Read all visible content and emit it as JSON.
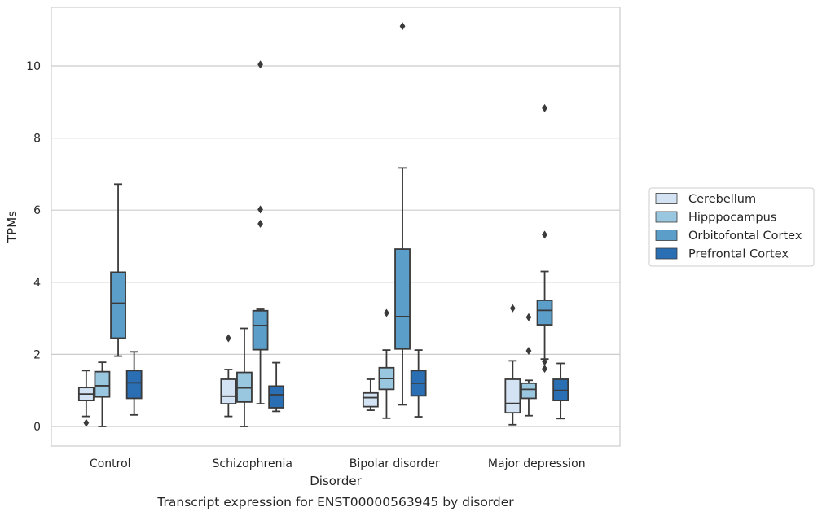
{
  "caption": "Transcript expression for ENST00000563945 by disorder",
  "chart_data": {
    "type": "box",
    "xlabel": "Disorder",
    "ylabel": "TPMs",
    "ylim": [
      -0.55,
      11.7
    ],
    "yticks": [
      0,
      2,
      4,
      6,
      8,
      10
    ],
    "grid": "horizontal",
    "legend_position": "right",
    "categories": [
      "Control",
      "Schizophrenia",
      "Bipolar disorder",
      "Major depression"
    ],
    "series": [
      {
        "name": "Cerebellum",
        "color": "#d3e3f3",
        "boxes": [
          {
            "whisker_low": 0.28,
            "q1": 0.72,
            "median": 0.9,
            "q3": 1.08,
            "whisker_high": 1.55,
            "outliers": [
              0.1
            ]
          },
          {
            "whisker_low": 0.28,
            "q1": 0.63,
            "median": 0.84,
            "q3": 1.31,
            "whisker_high": 1.58,
            "outliers": [
              2.45
            ]
          },
          {
            "whisker_low": 0.45,
            "q1": 0.55,
            "median": 0.8,
            "q3": 0.93,
            "whisker_high": 1.31,
            "outliers": []
          },
          {
            "whisker_low": 0.05,
            "q1": 0.38,
            "median": 0.64,
            "q3": 1.31,
            "whisker_high": 1.82,
            "outliers": [
              3.28
            ]
          }
        ]
      },
      {
        "name": "Hipppocampus",
        "color": "#9ac7e0",
        "boxes": [
          {
            "whisker_low": 0.0,
            "q1": 0.82,
            "median": 1.13,
            "q3": 1.52,
            "whisker_high": 1.78,
            "outliers": []
          },
          {
            "whisker_low": 0.0,
            "q1": 0.68,
            "median": 1.07,
            "q3": 1.5,
            "whisker_high": 2.72,
            "outliers": []
          },
          {
            "whisker_low": 0.23,
            "q1": 1.03,
            "median": 1.33,
            "q3": 1.63,
            "whisker_high": 2.12,
            "outliers": [
              3.15
            ]
          },
          {
            "whisker_low": 0.3,
            "q1": 0.78,
            "median": 1.03,
            "q3": 1.2,
            "whisker_high": 1.28,
            "outliers": [
              2.1,
              3.03
            ]
          }
        ]
      },
      {
        "name": "Orbitofontal Cortex",
        "color": "#5b9ec9",
        "boxes": [
          {
            "whisker_low": 1.95,
            "q1": 2.45,
            "median": 3.42,
            "q3": 4.28,
            "whisker_high": 6.72,
            "outliers": []
          },
          {
            "whisker_low": 0.63,
            "q1": 2.13,
            "median": 2.8,
            "q3": 3.21,
            "whisker_high": 3.25,
            "outliers": [
              5.62,
              6.02,
              10.04
            ]
          },
          {
            "whisker_low": 0.6,
            "q1": 2.15,
            "median": 3.05,
            "q3": 4.92,
            "whisker_high": 7.17,
            "outliers": [
              11.1
            ]
          },
          {
            "whisker_low": 1.87,
            "q1": 2.82,
            "median": 3.22,
            "q3": 3.5,
            "whisker_high": 4.3,
            "outliers": [
              1.6,
              1.8,
              5.32,
              8.83
            ]
          }
        ]
      },
      {
        "name": "Prefrontal Cortex",
        "color": "#2a6fb4",
        "boxes": [
          {
            "whisker_low": 0.32,
            "q1": 0.78,
            "median": 1.21,
            "q3": 1.55,
            "whisker_high": 2.07,
            "outliers": []
          },
          {
            "whisker_low": 0.42,
            "q1": 0.52,
            "median": 0.88,
            "q3": 1.12,
            "whisker_high": 1.77,
            "outliers": []
          },
          {
            "whisker_low": 0.27,
            "q1": 0.85,
            "median": 1.2,
            "q3": 1.55,
            "whisker_high": 2.12,
            "outliers": []
          },
          {
            "whisker_low": 0.22,
            "q1": 0.72,
            "median": 1.0,
            "q3": 1.31,
            "whisker_high": 1.75,
            "outliers": []
          }
        ]
      }
    ]
  }
}
